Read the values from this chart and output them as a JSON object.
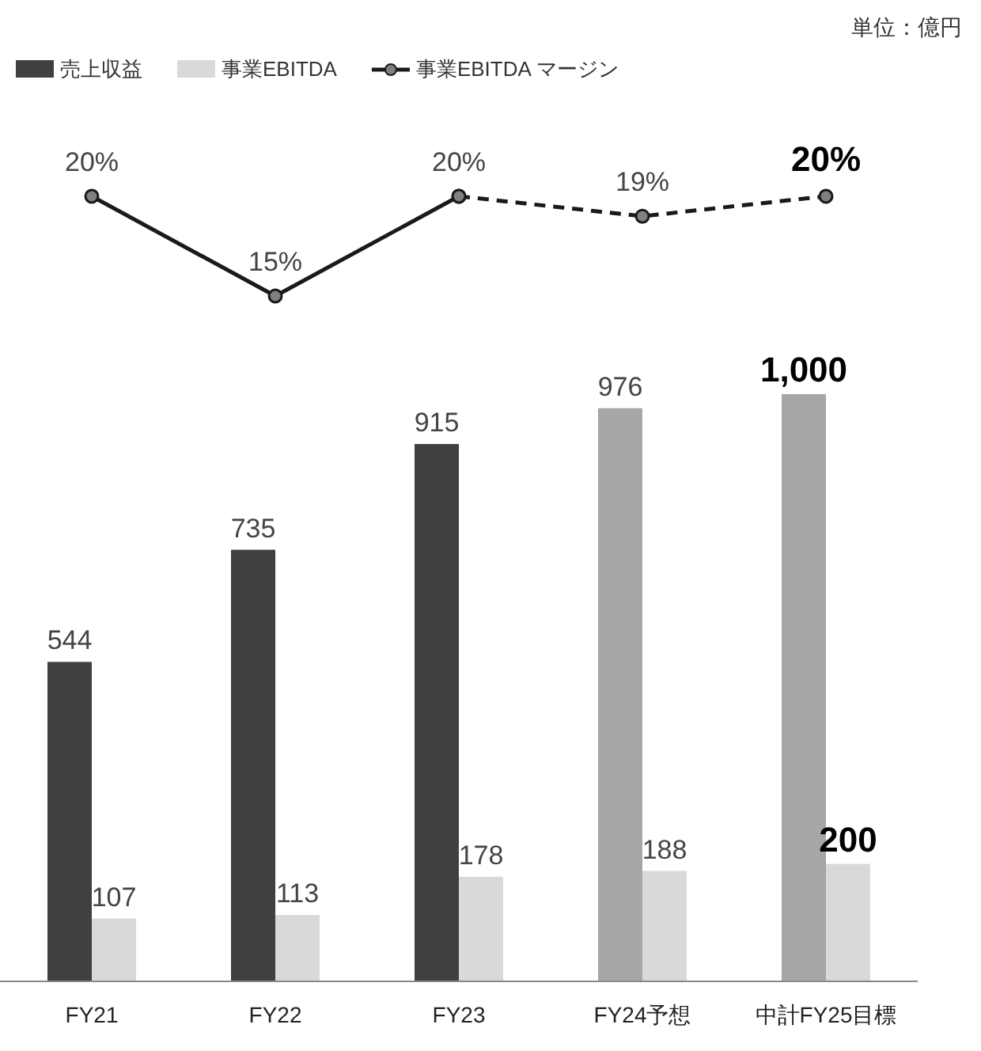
{
  "chart_data": [
    {
      "type": "line",
      "categories": [
        null,
        null,
        null,
        null,
        null
      ],
      "legend": "top left",
      "marker": "circle",
      "series": [
        {
          "name": "事業EBITDA マージン",
          "color": "#1a1a1a",
          "line_style": "solid",
          "values": [
            20,
            15,
            20,
            null,
            null
          ],
          "value_labels": [
            "20%",
            "15%",
            "20%",
            null,
            null
          ]
        },
        {
          "color": "#1a1a1a",
          "line_style": "dashed",
          "values": [
            null,
            null,
            20,
            19,
            20
          ],
          "value_labels": [
            null,
            null,
            null,
            "19%",
            "**20%**"
          ]
        }
      ]
    },
    {
      "type": "bar",
      "categories": [
        "FY21",
        "FY22",
        "FY23",
        "FY24予想",
        "中計FY25目標"
      ],
      "annotations": [
        "単位：億円"
      ],
      "legend": "top left",
      "ylim": [
        0,
        1000
      ],
      "series": [
        {
          "name": "売上収益",
          "color": "#404040",
          "colors": [
            "#404040",
            "#404040",
            "#404040",
            "#a6a6a6",
            "#a6a6a6"
          ],
          "values": [
            544,
            735,
            915,
            976,
            1000
          ],
          "value_labels": [
            "544",
            "735",
            "915",
            "976",
            "**1,000**"
          ]
        },
        {
          "name": "事業EBITDA",
          "color": "#d9d9d9",
          "values": [
            107,
            113,
            178,
            188,
            200
          ],
          "value_labels": [
            "107",
            "113",
            "178",
            "188",
            "**200**"
          ]
        }
      ]
    }
  ]
}
